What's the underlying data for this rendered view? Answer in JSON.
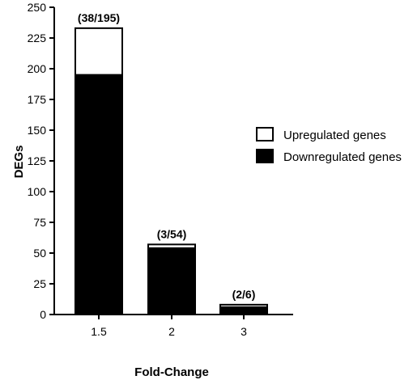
{
  "chart_data": {
    "type": "bar",
    "stacked": true,
    "categories": [
      "1.5",
      "2",
      "3"
    ],
    "series": [
      {
        "name": "Downregulated genes",
        "values": [
          195,
          54,
          6
        ],
        "color": "#000000"
      },
      {
        "name": "Upregulated genes",
        "values": [
          38,
          3,
          2
        ],
        "color": "#ffffff"
      }
    ],
    "data_labels": [
      "(38/195)",
      "(3/54)",
      "(2/6)"
    ],
    "xlabel": "Fold-Change",
    "ylabel": "DEGs",
    "ylim": [
      0,
      250
    ],
    "yticks": [
      0,
      25,
      50,
      75,
      100,
      125,
      150,
      175,
      200,
      225,
      250
    ],
    "legend": {
      "position": "right",
      "entries": [
        {
          "label": "Upregulated genes",
          "color": "#ffffff"
        },
        {
          "label": "Downregulated genes",
          "color": "#000000"
        }
      ]
    },
    "grid": false
  }
}
